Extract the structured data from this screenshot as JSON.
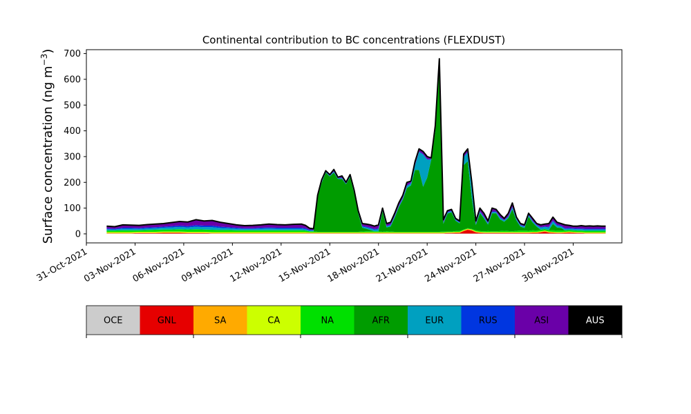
{
  "chart_data": {
    "type": "area",
    "stacked": true,
    "title": "Continental contribution to BC concentrations (FLEXDUST)",
    "ylabel": "Surface concentration (ng m",
    "ylabel_unit_exponent": "−3",
    "ylabel_close": ")",
    "xlabel": "",
    "ylim": [
      -35,
      715
    ],
    "xlim": [
      "2021-10-31",
      "2021-12-03"
    ],
    "yticks": [
      0,
      100,
      200,
      300,
      400,
      500,
      600,
      700
    ],
    "xticks": [
      "31-Oct-2021",
      "03-Nov-2021",
      "06-Nov-2021",
      "09-Nov-2021",
      "12-Nov-2021",
      "15-Nov-2021",
      "18-Nov-2021",
      "21-Nov-2021",
      "24-Nov-2021",
      "27-Nov-2021",
      "30-Nov-2021"
    ],
    "xtick_dates": [
      "2021-10-31",
      "2021-11-03",
      "2021-11-06",
      "2021-11-09",
      "2021-11-12",
      "2021-11-15",
      "2021-11-18",
      "2021-11-21",
      "2021-11-24",
      "2021-11-27",
      "2021-11-30"
    ],
    "grid": false,
    "legend_placement": "bottom colorbar",
    "x": [
      "2021-11-01 06:00",
      "2021-11-01 18:00",
      "2021-11-02 06:00",
      "2021-11-02 18:00",
      "2021-11-03 06:00",
      "2021-11-03 18:00",
      "2021-11-04 06:00",
      "2021-11-04 18:00",
      "2021-11-05 06:00",
      "2021-11-05 18:00",
      "2021-11-06 06:00",
      "2021-11-06 18:00",
      "2021-11-07 06:00",
      "2021-11-07 18:00",
      "2021-11-08 06:00",
      "2021-11-08 18:00",
      "2021-11-09 06:00",
      "2021-11-09 18:00",
      "2021-11-10 06:00",
      "2021-11-10 18:00",
      "2021-11-11 06:00",
      "2021-11-11 18:00",
      "2021-11-12 06:00",
      "2021-11-12 18:00",
      "2021-11-13 06:00",
      "2021-11-13 12:00",
      "2021-11-13 18:00",
      "2021-11-14 00:00",
      "2021-11-14 06:00",
      "2021-11-14 12:00",
      "2021-11-14 18:00",
      "2021-11-15 00:00",
      "2021-11-15 06:00",
      "2021-11-15 12:00",
      "2021-11-15 18:00",
      "2021-11-16 00:00",
      "2021-11-16 06:00",
      "2021-11-16 12:00",
      "2021-11-16 18:00",
      "2021-11-17 00:00",
      "2021-11-17 06:00",
      "2021-11-17 12:00",
      "2021-11-17 18:00",
      "2021-11-18 00:00",
      "2021-11-18 06:00",
      "2021-11-18 12:00",
      "2021-11-18 18:00",
      "2021-11-19 00:00",
      "2021-11-19 06:00",
      "2021-11-19 12:00",
      "2021-11-19 18:00",
      "2021-11-20 00:00",
      "2021-11-20 06:00",
      "2021-11-20 12:00",
      "2021-11-20 18:00",
      "2021-11-21 00:00",
      "2021-11-21 06:00",
      "2021-11-21 12:00",
      "2021-11-21 18:00",
      "2021-11-22 00:00",
      "2021-11-22 06:00",
      "2021-11-22 12:00",
      "2021-11-22 18:00",
      "2021-11-23 00:00",
      "2021-11-23 06:00",
      "2021-11-23 12:00",
      "2021-11-23 18:00",
      "2021-11-24 00:00",
      "2021-11-24 06:00",
      "2021-11-24 12:00",
      "2021-11-24 18:00",
      "2021-11-25 00:00",
      "2021-11-25 06:00",
      "2021-11-25 12:00",
      "2021-11-25 18:00",
      "2021-11-26 00:00",
      "2021-11-26 06:00",
      "2021-11-26 12:00",
      "2021-11-26 18:00",
      "2021-11-27 00:00",
      "2021-11-27 06:00",
      "2021-11-27 12:00",
      "2021-11-27 18:00",
      "2021-11-28 00:00",
      "2021-11-28 06:00",
      "2021-11-28 12:00",
      "2021-11-28 18:00",
      "2021-11-29 00:00",
      "2021-11-29 06:00",
      "2021-11-29 12:00",
      "2021-11-29 18:00",
      "2021-11-30 00:00",
      "2021-11-30 06:00",
      "2021-11-30 12:00",
      "2021-11-30 18:00",
      "2021-12-01 00:00",
      "2021-12-01 06:00",
      "2021-12-01 12:00",
      "2021-12-01 18:00",
      "2021-12-02 00:00"
    ],
    "total": [
      30,
      28,
      35,
      34,
      33,
      36,
      38,
      40,
      44,
      48,
      46,
      55,
      50,
      52,
      45,
      40,
      35,
      32,
      33,
      35,
      38,
      36,
      35,
      37,
      38,
      33,
      22,
      20,
      150,
      210,
      245,
      230,
      250,
      220,
      225,
      200,
      230,
      170,
      90,
      40,
      38,
      35,
      30,
      35,
      100,
      40,
      45,
      80,
      120,
      150,
      200,
      205,
      280,
      330,
      320,
      300,
      295,
      420,
      680,
      55,
      90,
      95,
      60,
      50,
      310,
      330,
      200,
      50,
      100,
      80,
      50,
      100,
      95,
      75,
      60,
      80,
      120,
      65,
      40,
      35,
      80,
      60,
      40,
      35,
      38,
      40,
      65,
      45,
      40,
      35,
      33,
      30,
      30,
      32,
      30,
      31,
      30,
      31,
      30,
      30
    ],
    "series": [
      {
        "name": "OCE",
        "color": "#cccccc",
        "values": [
          1,
          1,
          1,
          1,
          1,
          1,
          1,
          1,
          1,
          1,
          1,
          1,
          1,
          1,
          1,
          1,
          1,
          1,
          1,
          1,
          1,
          1,
          1,
          1,
          1,
          1,
          1,
          1,
          1,
          1,
          1,
          1,
          1,
          1,
          1,
          1,
          1,
          1,
          1,
          1,
          1,
          1,
          1,
          1,
          1,
          1,
          1,
          1,
          1,
          1,
          1,
          1,
          1,
          1,
          1,
          1,
          1,
          1,
          1,
          1,
          1,
          1,
          1,
          1,
          1,
          1,
          1,
          1,
          1,
          1,
          1,
          1,
          1,
          1,
          1,
          1,
          1,
          1,
          1,
          1,
          1,
          1,
          1,
          1,
          1,
          1,
          1,
          1,
          1,
          1,
          1,
          1,
          1,
          1,
          1,
          1,
          1,
          1,
          1,
          1
        ]
      },
      {
        "name": "GNL",
        "color": "#e60000",
        "values": [
          1,
          1,
          1,
          1,
          2,
          2,
          2,
          3,
          3,
          3,
          2,
          2,
          2,
          1,
          1,
          1,
          1,
          1,
          1,
          1,
          1,
          1,
          1,
          1,
          1,
          1,
          1,
          1,
          1,
          1,
          1,
          1,
          1,
          1,
          1,
          1,
          1,
          1,
          1,
          1,
          1,
          1,
          1,
          1,
          1,
          1,
          1,
          1,
          1,
          1,
          1,
          1,
          1,
          1,
          1,
          1,
          1,
          1,
          1,
          1,
          2,
          2,
          3,
          3,
          10,
          15,
          12,
          5,
          3,
          2,
          2,
          2,
          2,
          2,
          2,
          2,
          2,
          2,
          2,
          2,
          2,
          3,
          3,
          5,
          8,
          4,
          3,
          2,
          2,
          3,
          4,
          3,
          2,
          2,
          1,
          1,
          1,
          1,
          1,
          1
        ]
      },
      {
        "name": "SA",
        "color": "#ffaa00",
        "values": [
          2,
          2,
          2,
          2,
          2,
          2,
          2,
          2,
          2,
          2,
          2,
          2,
          2,
          2,
          2,
          2,
          2,
          2,
          2,
          2,
          2,
          2,
          2,
          2,
          2,
          2,
          2,
          2,
          2,
          2,
          2,
          2,
          2,
          2,
          2,
          2,
          2,
          2,
          2,
          2,
          2,
          2,
          2,
          2,
          2,
          2,
          2,
          2,
          2,
          2,
          2,
          2,
          2,
          2,
          2,
          2,
          2,
          2,
          2,
          2,
          2,
          2,
          2,
          2,
          2,
          2,
          2,
          2,
          2,
          2,
          2,
          2,
          2,
          2,
          2,
          2,
          2,
          2,
          2,
          2,
          2,
          2,
          2,
          2,
          2,
          2,
          2,
          2,
          2,
          2,
          2,
          2,
          2,
          2,
          2,
          2,
          2,
          2,
          2,
          2
        ]
      },
      {
        "name": "CA",
        "color": "#ccff00",
        "values": [
          3,
          3,
          3,
          3,
          3,
          3,
          3,
          3,
          3,
          3,
          3,
          3,
          3,
          3,
          3,
          3,
          3,
          3,
          3,
          3,
          3,
          3,
          3,
          3,
          3,
          3,
          2,
          2,
          2,
          2,
          2,
          2,
          2,
          2,
          2,
          2,
          2,
          2,
          2,
          2,
          2,
          2,
          2,
          2,
          2,
          2,
          2,
          2,
          2,
          2,
          2,
          2,
          2,
          2,
          2,
          2,
          2,
          2,
          2,
          2,
          2,
          2,
          2,
          2,
          2,
          2,
          2,
          2,
          2,
          2,
          2,
          2,
          2,
          2,
          2,
          2,
          2,
          2,
          2,
          2,
          2,
          2,
          2,
          2,
          2,
          2,
          2,
          2,
          2,
          2,
          2,
          2,
          2,
          2,
          2,
          2,
          2,
          2,
          2,
          2
        ]
      },
      {
        "name": "NA",
        "color": "#00e000",
        "values": [
          6,
          6,
          7,
          7,
          6,
          7,
          8,
          8,
          8,
          9,
          9,
          10,
          9,
          9,
          8,
          8,
          7,
          7,
          7,
          7,
          7,
          7,
          7,
          7,
          7,
          6,
          4,
          4,
          2,
          2,
          2,
          2,
          2,
          2,
          2,
          2,
          2,
          2,
          2,
          3,
          4,
          4,
          4,
          4,
          2,
          4,
          3,
          2,
          2,
          2,
          2,
          2,
          2,
          2,
          2,
          2,
          2,
          2,
          2,
          3,
          2,
          2,
          3,
          3,
          2,
          2,
          2,
          4,
          3,
          3,
          4,
          3,
          3,
          4,
          5,
          4,
          3,
          5,
          6,
          6,
          5,
          6,
          5,
          6,
          6,
          6,
          6,
          6,
          6,
          6,
          6,
          6,
          6,
          6,
          6,
          6,
          6,
          6,
          6,
          6
        ]
      },
      {
        "name": "AFR",
        "color": "#009c00",
        "values": [
          0,
          0,
          0,
          0,
          0,
          0,
          0,
          0,
          0,
          0,
          0,
          0,
          0,
          0,
          0,
          0,
          0,
          0,
          0,
          0,
          0,
          0,
          0,
          0,
          0,
          0,
          0,
          0,
          135,
          190,
          230,
          215,
          230,
          205,
          205,
          185,
          212,
          150,
          72,
          15,
          10,
          5,
          0,
          0,
          80,
          15,
          20,
          55,
          95,
          125,
          170,
          180,
          240,
          240,
          175,
          210,
          280,
          390,
          645,
          30,
          70,
          75,
          40,
          30,
          250,
          260,
          120,
          20,
          70,
          50,
          25,
          70,
          70,
          45,
          35,
          50,
          85,
          40,
          15,
          10,
          55,
          30,
          15,
          0,
          0,
          0,
          25,
          12,
          10,
          0,
          0,
          0,
          0,
          0,
          0,
          0,
          0,
          0,
          0,
          0
        ]
      },
      {
        "name": "EUR",
        "color": "#00a0c0",
        "values": [
          5,
          4,
          6,
          6,
          5,
          6,
          6,
          7,
          8,
          9,
          8,
          10,
          9,
          10,
          8,
          7,
          6,
          5,
          5,
          6,
          7,
          6,
          6,
          6,
          6,
          5,
          3,
          3,
          2,
          3,
          2,
          2,
          3,
          2,
          3,
          2,
          3,
          2,
          2,
          4,
          5,
          6,
          6,
          8,
          3,
          4,
          5,
          5,
          4,
          5,
          8,
          8,
          17,
          70,
          125,
          70,
          0,
          10,
          15,
          5,
          4,
          4,
          3,
          3,
          30,
          35,
          45,
          5,
          5,
          5,
          5,
          5,
          5,
          6,
          5,
          5,
          8,
          5,
          5,
          5,
          5,
          5,
          5,
          8,
          8,
          10,
          10,
          7,
          6,
          5,
          5,
          5,
          5,
          5,
          5,
          5,
          5,
          5,
          5,
          5
        ]
      },
      {
        "name": "RUS",
        "color": "#0036e0",
        "values": [
          3,
          3,
          4,
          4,
          4,
          4,
          4,
          4,
          5,
          5,
          5,
          6,
          6,
          6,
          5,
          4,
          4,
          3,
          3,
          4,
          4,
          4,
          4,
          4,
          4,
          4,
          3,
          2,
          2,
          2,
          2,
          2,
          2,
          2,
          2,
          2,
          2,
          2,
          2,
          3,
          3,
          3,
          3,
          3,
          2,
          2,
          2,
          2,
          2,
          2,
          2,
          2,
          2,
          2,
          2,
          2,
          2,
          2,
          2,
          2,
          2,
          2,
          2,
          2,
          2,
          2,
          2,
          2,
          2,
          2,
          2,
          2,
          2,
          2,
          2,
          2,
          2,
          2,
          2,
          2,
          2,
          2,
          2,
          2,
          2,
          2,
          3,
          3,
          3,
          3,
          3,
          3,
          3,
          3,
          3,
          3,
          3,
          3,
          3,
          3
        ]
      },
      {
        "name": "ASI",
        "color": "#6a00a8",
        "values": [
          8,
          7,
          10,
          9,
          9,
          10,
          11,
          11,
          13,
          15,
          15,
          20,
          17,
          19,
          16,
          13,
          10,
          9,
          10,
          10,
          12,
          11,
          10,
          12,
          13,
          10,
          5,
          4,
          4,
          6,
          2,
          2,
          6,
          4,
          6,
          4,
          6,
          4,
          7,
          9,
          10,
          11,
          10,
          14,
          6,
          9,
          9,
          9,
          11,
          10,
          12,
          7,
          11,
          9,
          8,
          9,
          2,
          10,
          10,
          10,
          5,
          5,
          4,
          4,
          10,
          13,
          14,
          9,
          12,
          13,
          7,
          13,
          8,
          13,
          8,
          13,
          15,
          8,
          6,
          6,
          6,
          8,
          4,
          8,
          9,
          12,
          11,
          9,
          8,
          12,
          9,
          8,
          9,
          11,
          10,
          11,
          10,
          11,
          10,
          10
        ]
      },
      {
        "name": "AUS",
        "color": "#000000",
        "values": [
          0,
          0,
          0,
          0,
          0,
          0,
          0,
          0,
          0,
          0,
          0,
          0,
          0,
          0,
          0,
          0,
          0,
          0,
          0,
          0,
          0,
          0,
          0,
          0,
          0,
          0,
          0,
          0,
          0,
          0,
          0,
          0,
          0,
          0,
          0,
          0,
          0,
          0,
          0,
          0,
          0,
          0,
          0,
          0,
          0,
          0,
          0,
          0,
          0,
          0,
          0,
          0,
          0,
          0,
          0,
          0,
          0,
          0,
          0,
          0,
          0,
          0,
          0,
          0,
          0,
          0,
          0,
          0,
          0,
          0,
          0,
          0,
          0,
          0,
          0,
          0,
          0,
          0,
          0,
          0,
          0,
          0,
          0,
          0,
          0,
          0,
          0,
          0,
          0,
          0,
          0,
          0,
          0,
          0,
          0,
          0,
          0,
          0,
          0,
          0
        ]
      }
    ]
  },
  "legend": {
    "labels": [
      "OCE",
      "GNL",
      "SA",
      "CA",
      "NA",
      "AFR",
      "EUR",
      "RUS",
      "ASI",
      "AUS"
    ],
    "colors": [
      "#cccccc",
      "#e60000",
      "#ffaa00",
      "#ccff00",
      "#00e000",
      "#009c00",
      "#00a0c0",
      "#0036e0",
      "#6a00a8",
      "#000000"
    ],
    "label_colors": [
      "#000000",
      "#000000",
      "#000000",
      "#000000",
      "#000000",
      "#000000",
      "#000000",
      "#000000",
      "#000000",
      "#ffffff"
    ]
  }
}
